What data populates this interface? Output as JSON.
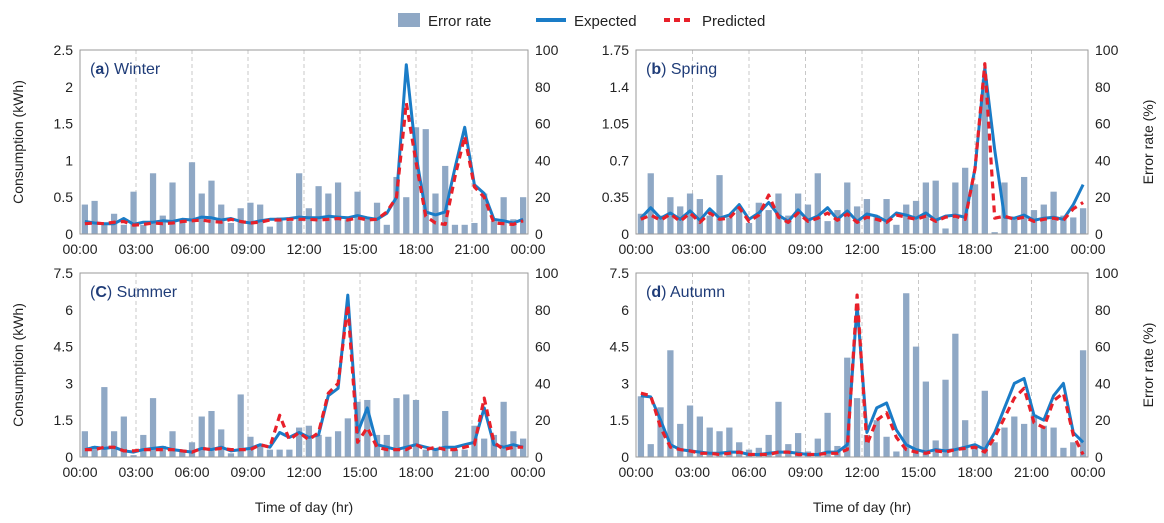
{
  "colors": {
    "bar": "#8fa8c5",
    "expected": "#1a7cc7",
    "predicted": "#e8202a",
    "grid": "#c8c8c8",
    "title": "#1f3c78"
  },
  "legend": {
    "error_rate": "Error rate",
    "expected": "Expected",
    "predicted": "Predicted"
  },
  "shared": {
    "xlabel": "Time of day (hr)",
    "ylabel_left": "Consumption (kWh)",
    "ylabel_right": "Error rate (%)",
    "x_ticks": [
      "00:00",
      "03:00",
      "06:00",
      "09:00",
      "12:00",
      "15:00",
      "18:00",
      "21:00",
      "00:00"
    ]
  },
  "chart_data": [
    {
      "type": "bar+line",
      "panel_letter": "a",
      "panel_name": "Winter",
      "title_pre": "(",
      "title_post": ") Winter",
      "ylim_left": [
        0,
        2.5
      ],
      "yticks_left": [
        "0",
        "0.5",
        "1",
        "1.5",
        "2",
        "2.5"
      ],
      "ylim_right": [
        0,
        100
      ],
      "yticks_right": [
        "0",
        "20",
        "40",
        "60",
        "80",
        "100"
      ],
      "show_ylabel_left": true,
      "show_ylabel_right": false,
      "show_xlabel": false,
      "error_rate": [
        16,
        18,
        6,
        11,
        5,
        23,
        5,
        33,
        10,
        28,
        8,
        39,
        22,
        29,
        16,
        6,
        14,
        17,
        16,
        4,
        9,
        7,
        33,
        14,
        26,
        22,
        28,
        8,
        23,
        9,
        17,
        5,
        31,
        20,
        58,
        57,
        22,
        37,
        5,
        5,
        6,
        22,
        7,
        20,
        8,
        20
      ],
      "expected": [
        0.17,
        0.15,
        0.14,
        0.14,
        0.21,
        0.13,
        0.16,
        0.16,
        0.18,
        0.17,
        0.2,
        0.19,
        0.23,
        0.22,
        0.19,
        0.21,
        0.17,
        0.15,
        0.18,
        0.2,
        0.2,
        0.21,
        0.23,
        0.22,
        0.22,
        0.24,
        0.23,
        0.22,
        0.25,
        0.22,
        0.2,
        0.28,
        0.5,
        2.3,
        1.07,
        0.3,
        0.26,
        0.3,
        0.9,
        1.45,
        0.67,
        0.55,
        0.2,
        0.18,
        0.15,
        0.2
      ],
      "predicted": [
        0.14,
        0.15,
        0.14,
        0.16,
        0.17,
        0.12,
        0.13,
        0.15,
        0.14,
        0.15,
        0.17,
        0.18,
        0.19,
        0.17,
        0.16,
        0.2,
        0.17,
        0.15,
        0.16,
        0.19,
        0.19,
        0.2,
        0.2,
        0.2,
        0.19,
        0.2,
        0.21,
        0.19,
        0.22,
        0.19,
        0.2,
        0.3,
        0.5,
        1.78,
        0.98,
        0.24,
        0.15,
        0.13,
        0.78,
        1.33,
        0.64,
        0.5,
        0.15,
        0.14,
        0.13,
        0.18
      ]
    },
    {
      "type": "bar+line",
      "panel_letter": "b",
      "panel_name": "Spring",
      "title_pre": "(",
      "title_post": ") Spring",
      "ylim_left": [
        0,
        1.75
      ],
      "yticks_left": [
        "0",
        "0.35",
        "0.7",
        "1.05",
        "1.4",
        "1.75"
      ],
      "ylim_right": [
        0,
        100
      ],
      "yticks_right": [
        "0",
        "20",
        "40",
        "60",
        "80",
        "100"
      ],
      "show_ylabel_left": false,
      "show_ylabel_right": true,
      "show_xlabel": false,
      "error_rate": [
        11,
        33,
        10,
        20,
        15,
        22,
        19,
        10,
        32,
        9,
        14,
        6,
        17,
        13,
        22,
        10,
        22,
        16,
        33,
        7,
        13,
        28,
        15,
        19,
        10,
        19,
        5,
        16,
        18,
        28,
        29,
        3,
        28,
        36,
        27,
        84,
        1,
        28,
        9,
        31,
        13,
        16,
        23,
        10,
        9,
        14
      ],
      "expected": [
        0.15,
        0.25,
        0.15,
        0.2,
        0.14,
        0.22,
        0.13,
        0.24,
        0.15,
        0.18,
        0.28,
        0.14,
        0.2,
        0.3,
        0.18,
        0.12,
        0.23,
        0.13,
        0.17,
        0.25,
        0.14,
        0.22,
        0.12,
        0.19,
        0.17,
        0.12,
        0.2,
        0.18,
        0.15,
        0.2,
        0.13,
        0.17,
        0.18,
        0.16,
        0.62,
        1.58,
        0.8,
        0.16,
        0.15,
        0.18,
        0.13,
        0.15,
        0.16,
        0.14,
        0.28,
        0.47
      ],
      "predicted": [
        0.14,
        0.18,
        0.13,
        0.19,
        0.12,
        0.2,
        0.11,
        0.2,
        0.14,
        0.15,
        0.25,
        0.12,
        0.18,
        0.37,
        0.16,
        0.11,
        0.2,
        0.12,
        0.15,
        0.2,
        0.13,
        0.19,
        0.11,
        0.16,
        0.14,
        0.11,
        0.18,
        0.16,
        0.14,
        0.17,
        0.12,
        0.16,
        0.17,
        0.14,
        0.62,
        1.62,
        0.15,
        0.17,
        0.14,
        0.16,
        0.12,
        0.14,
        0.15,
        0.13,
        0.24,
        0.3
      ]
    },
    {
      "type": "bar+line",
      "panel_letter": "C",
      "panel_name": "Summer",
      "title_pre": "(",
      "title_post": ") Summer",
      "ylim_left": [
        0,
        7.5
      ],
      "yticks_left": [
        "0",
        "1.5",
        "3",
        "4.5",
        "6",
        "7.5"
      ],
      "ylim_right": [
        0,
        100
      ],
      "yticks_right": [
        "0",
        "20",
        "40",
        "60",
        "80",
        "100"
      ],
      "show_ylabel_left": true,
      "show_ylabel_right": false,
      "show_xlabel": true,
      "error_rate": [
        14,
        6,
        38,
        14,
        22,
        1,
        12,
        32,
        6,
        14,
        3,
        8,
        22,
        25,
        15,
        2,
        34,
        11,
        7,
        4,
        4,
        4,
        16,
        17,
        12,
        11,
        14,
        21,
        30,
        31,
        12,
        12,
        32,
        34,
        31,
        4,
        4,
        25,
        4,
        4,
        17,
        10,
        12,
        30,
        14,
        10
      ],
      "expected": [
        0.3,
        0.4,
        0.35,
        0.4,
        0.25,
        0.2,
        0.3,
        0.35,
        0.4,
        0.3,
        0.25,
        0.2,
        0.35,
        0.3,
        0.4,
        0.25,
        0.3,
        0.35,
        0.5,
        0.4,
        1.0,
        0.8,
        1.0,
        0.8,
        0.9,
        2.5,
        2.8,
        6.6,
        1.0,
        2.0,
        0.5,
        0.4,
        0.3,
        0.4,
        0.5,
        0.4,
        0.3,
        0.4,
        0.4,
        0.5,
        0.6,
        2.0,
        0.5,
        0.4,
        0.5,
        0.4
      ],
      "predicted": [
        0.3,
        0.3,
        0.4,
        0.4,
        0.25,
        0.25,
        0.3,
        0.3,
        0.3,
        0.3,
        0.25,
        0.2,
        0.35,
        0.3,
        0.35,
        0.3,
        0.3,
        0.3,
        0.5,
        0.4,
        1.7,
        0.7,
        1.0,
        0.7,
        1.0,
        2.6,
        3.0,
        6.2,
        0.6,
        1.2,
        0.4,
        0.3,
        0.3,
        0.3,
        0.5,
        0.3,
        0.4,
        0.3,
        0.3,
        0.4,
        0.5,
        2.4,
        0.6,
        0.3,
        0.4,
        0.4
      ]
    },
    {
      "type": "bar+line",
      "panel_letter": "d",
      "panel_name": "Autumn",
      "title_pre": "(",
      "title_post": ") Autumn",
      "ylim_left": [
        0,
        7.5
      ],
      "yticks_left": [
        "0",
        "1.5",
        "3",
        "4.5",
        "6",
        "7.5"
      ],
      "ylim_right": [
        0,
        100
      ],
      "yticks_right": [
        "0",
        "20",
        "40",
        "60",
        "80",
        "100"
      ],
      "show_ylabel_left": false,
      "show_ylabel_right": true,
      "show_xlabel": true,
      "error_rate": [
        33,
        7,
        27,
        58,
        18,
        28,
        22,
        16,
        14,
        16,
        8,
        4,
        5,
        12,
        30,
        7,
        13,
        3,
        10,
        24,
        6,
        54,
        32,
        12,
        20,
        11,
        3,
        89,
        60,
        41,
        9,
        42,
        67,
        20,
        6,
        36,
        8,
        16,
        22,
        18,
        23,
        17,
        16,
        5,
        8,
        58
      ],
      "expected": [
        2.5,
        2.45,
        1.5,
        0.5,
        0.3,
        0.25,
        0.2,
        0.15,
        0.15,
        0.2,
        0.2,
        0.1,
        0.1,
        0.15,
        0.2,
        0.2,
        0.15,
        0.1,
        0.1,
        0.2,
        0.2,
        0.5,
        6.2,
        1.0,
        2.0,
        2.2,
        1.1,
        0.5,
        0.3,
        0.2,
        0.3,
        0.25,
        0.3,
        0.4,
        0.5,
        0.3,
        1.0,
        2.0,
        3.0,
        3.2,
        1.7,
        1.5,
        2.5,
        3.0,
        1.0,
        0.6
      ],
      "predicted": [
        2.6,
        2.5,
        1.2,
        0.4,
        0.3,
        0.25,
        0.15,
        0.15,
        0.1,
        0.15,
        0.2,
        0.1,
        0.1,
        0.1,
        0.2,
        0.2,
        0.1,
        0.1,
        0.1,
        0.15,
        0.15,
        0.3,
        6.6,
        0.5,
        1.5,
        1.8,
        0.8,
        0.3,
        0.2,
        0.15,
        0.25,
        0.2,
        0.3,
        0.35,
        0.4,
        0.2,
        0.8,
        1.6,
        2.4,
        2.8,
        1.4,
        1.2,
        2.3,
        2.6,
        0.9,
        0.1
      ]
    }
  ]
}
